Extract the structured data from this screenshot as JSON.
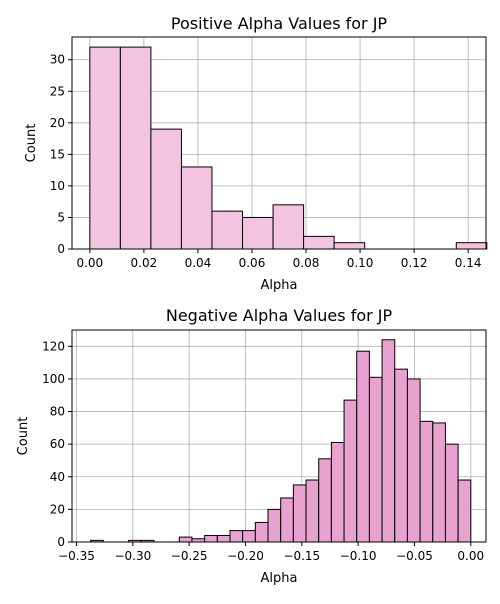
{
  "chart_data": [
    {
      "type": "bar",
      "title": "Positive Alpha Values for JP",
      "xlabel": "Alpha",
      "ylabel": "Count",
      "xlim": [
        -0.0066,
        0.1466
      ],
      "ylim": [
        0,
        33.6
      ],
      "xticks": [
        0.0,
        0.02,
        0.04,
        0.06,
        0.08,
        0.1,
        0.12,
        0.14
      ],
      "xtick_labels": [
        "0.00",
        "0.02",
        "0.04",
        "0.06",
        "0.08",
        "0.10",
        "0.12",
        "0.14"
      ],
      "yticks": [
        0,
        5,
        10,
        15,
        20,
        25,
        30
      ],
      "ytick_labels": [
        "0",
        "5",
        "10",
        "15",
        "20",
        "25",
        "30"
      ],
      "bin_edges": [
        0.0,
        0.0113,
        0.0226,
        0.0339,
        0.0452,
        0.0565,
        0.0678,
        0.0791,
        0.0904,
        0.1017,
        0.113,
        0.1243,
        0.1356,
        0.1469
      ],
      "values": [
        32,
        32,
        19,
        13,
        6,
        5,
        7,
        2,
        1,
        0,
        0,
        0,
        1
      ],
      "color": "#f2c4e0",
      "grid": true
    },
    {
      "type": "bar",
      "title": "Negative Alpha Values for JP",
      "xlabel": "Alpha",
      "ylabel": "Count",
      "xlim": [
        -0.354,
        0.0135
      ],
      "ylim": [
        0,
        130
      ],
      "xticks": [
        -0.35,
        -0.3,
        -0.25,
        -0.2,
        -0.15,
        -0.1,
        -0.05,
        0.0
      ],
      "xtick_labels": [
        "−0.35",
        "−0.30",
        "−0.25",
        "−0.20",
        "−0.15",
        "−0.10",
        "−0.05",
        "0.00"
      ],
      "yticks": [
        0,
        20,
        40,
        60,
        80,
        100,
        120
      ],
      "ytick_labels": [
        "0",
        "20",
        "40",
        "60",
        "80",
        "100",
        "120"
      ],
      "bin_start": -0.3375,
      "bin_width": 0.01125,
      "values": [
        1,
        0,
        0,
        1,
        1,
        0,
        0,
        3,
        2,
        4,
        4,
        7,
        7,
        12,
        20,
        27,
        35,
        38,
        51,
        61,
        87,
        117,
        101,
        124,
        106,
        100,
        74,
        73,
        60,
        38
      ],
      "color": "#e7a2d0",
      "grid": true
    }
  ]
}
